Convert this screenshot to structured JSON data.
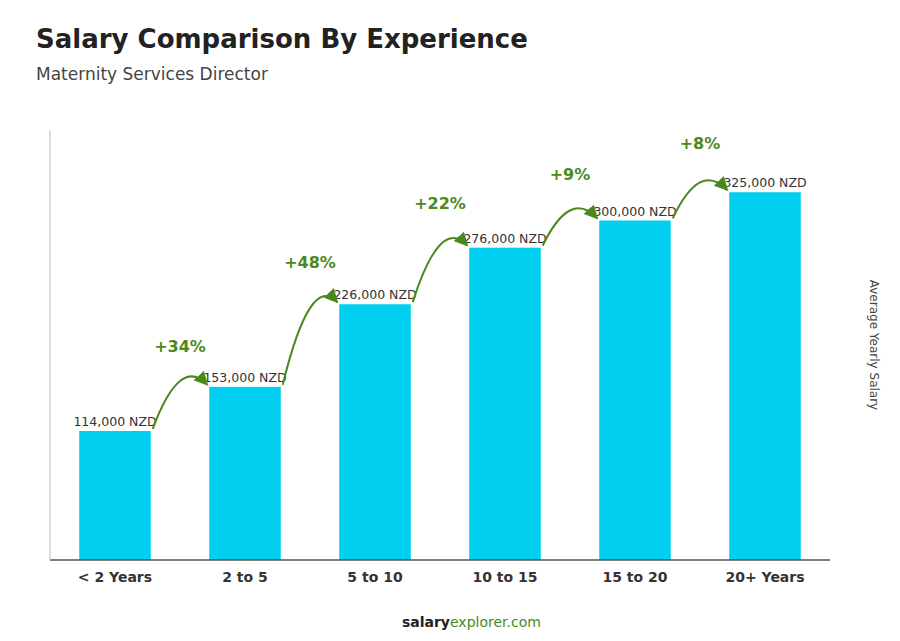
{
  "chart_data": {
    "type": "bar",
    "title": "Salary Comparison By Experience",
    "subtitle": "Maternity Services Director",
    "categories": [
      "< 2 Years",
      "2 to 5",
      "5 to 10",
      "10 to 15",
      "15 to 20",
      "20+ Years"
    ],
    "values": [
      114000,
      153000,
      226000,
      276000,
      300000,
      325000
    ],
    "value_labels": [
      "114,000 NZD",
      "153,000 NZD",
      "226,000 NZD",
      "276,000 NZD",
      "300,000 NZD",
      "325,000 NZD"
    ],
    "data_labels": true,
    "annotations": [
      "+34%",
      "+48%",
      "+22%",
      "+9%",
      "+8%"
    ],
    "y_label": "Average Yearly Salary",
    "footer": [
      "salary",
      "explorer.com"
    ],
    "color": "#00CFEF",
    "ylim": [
      0,
      380000
    ],
    "tick_labels": "x",
    "grid": false
  }
}
